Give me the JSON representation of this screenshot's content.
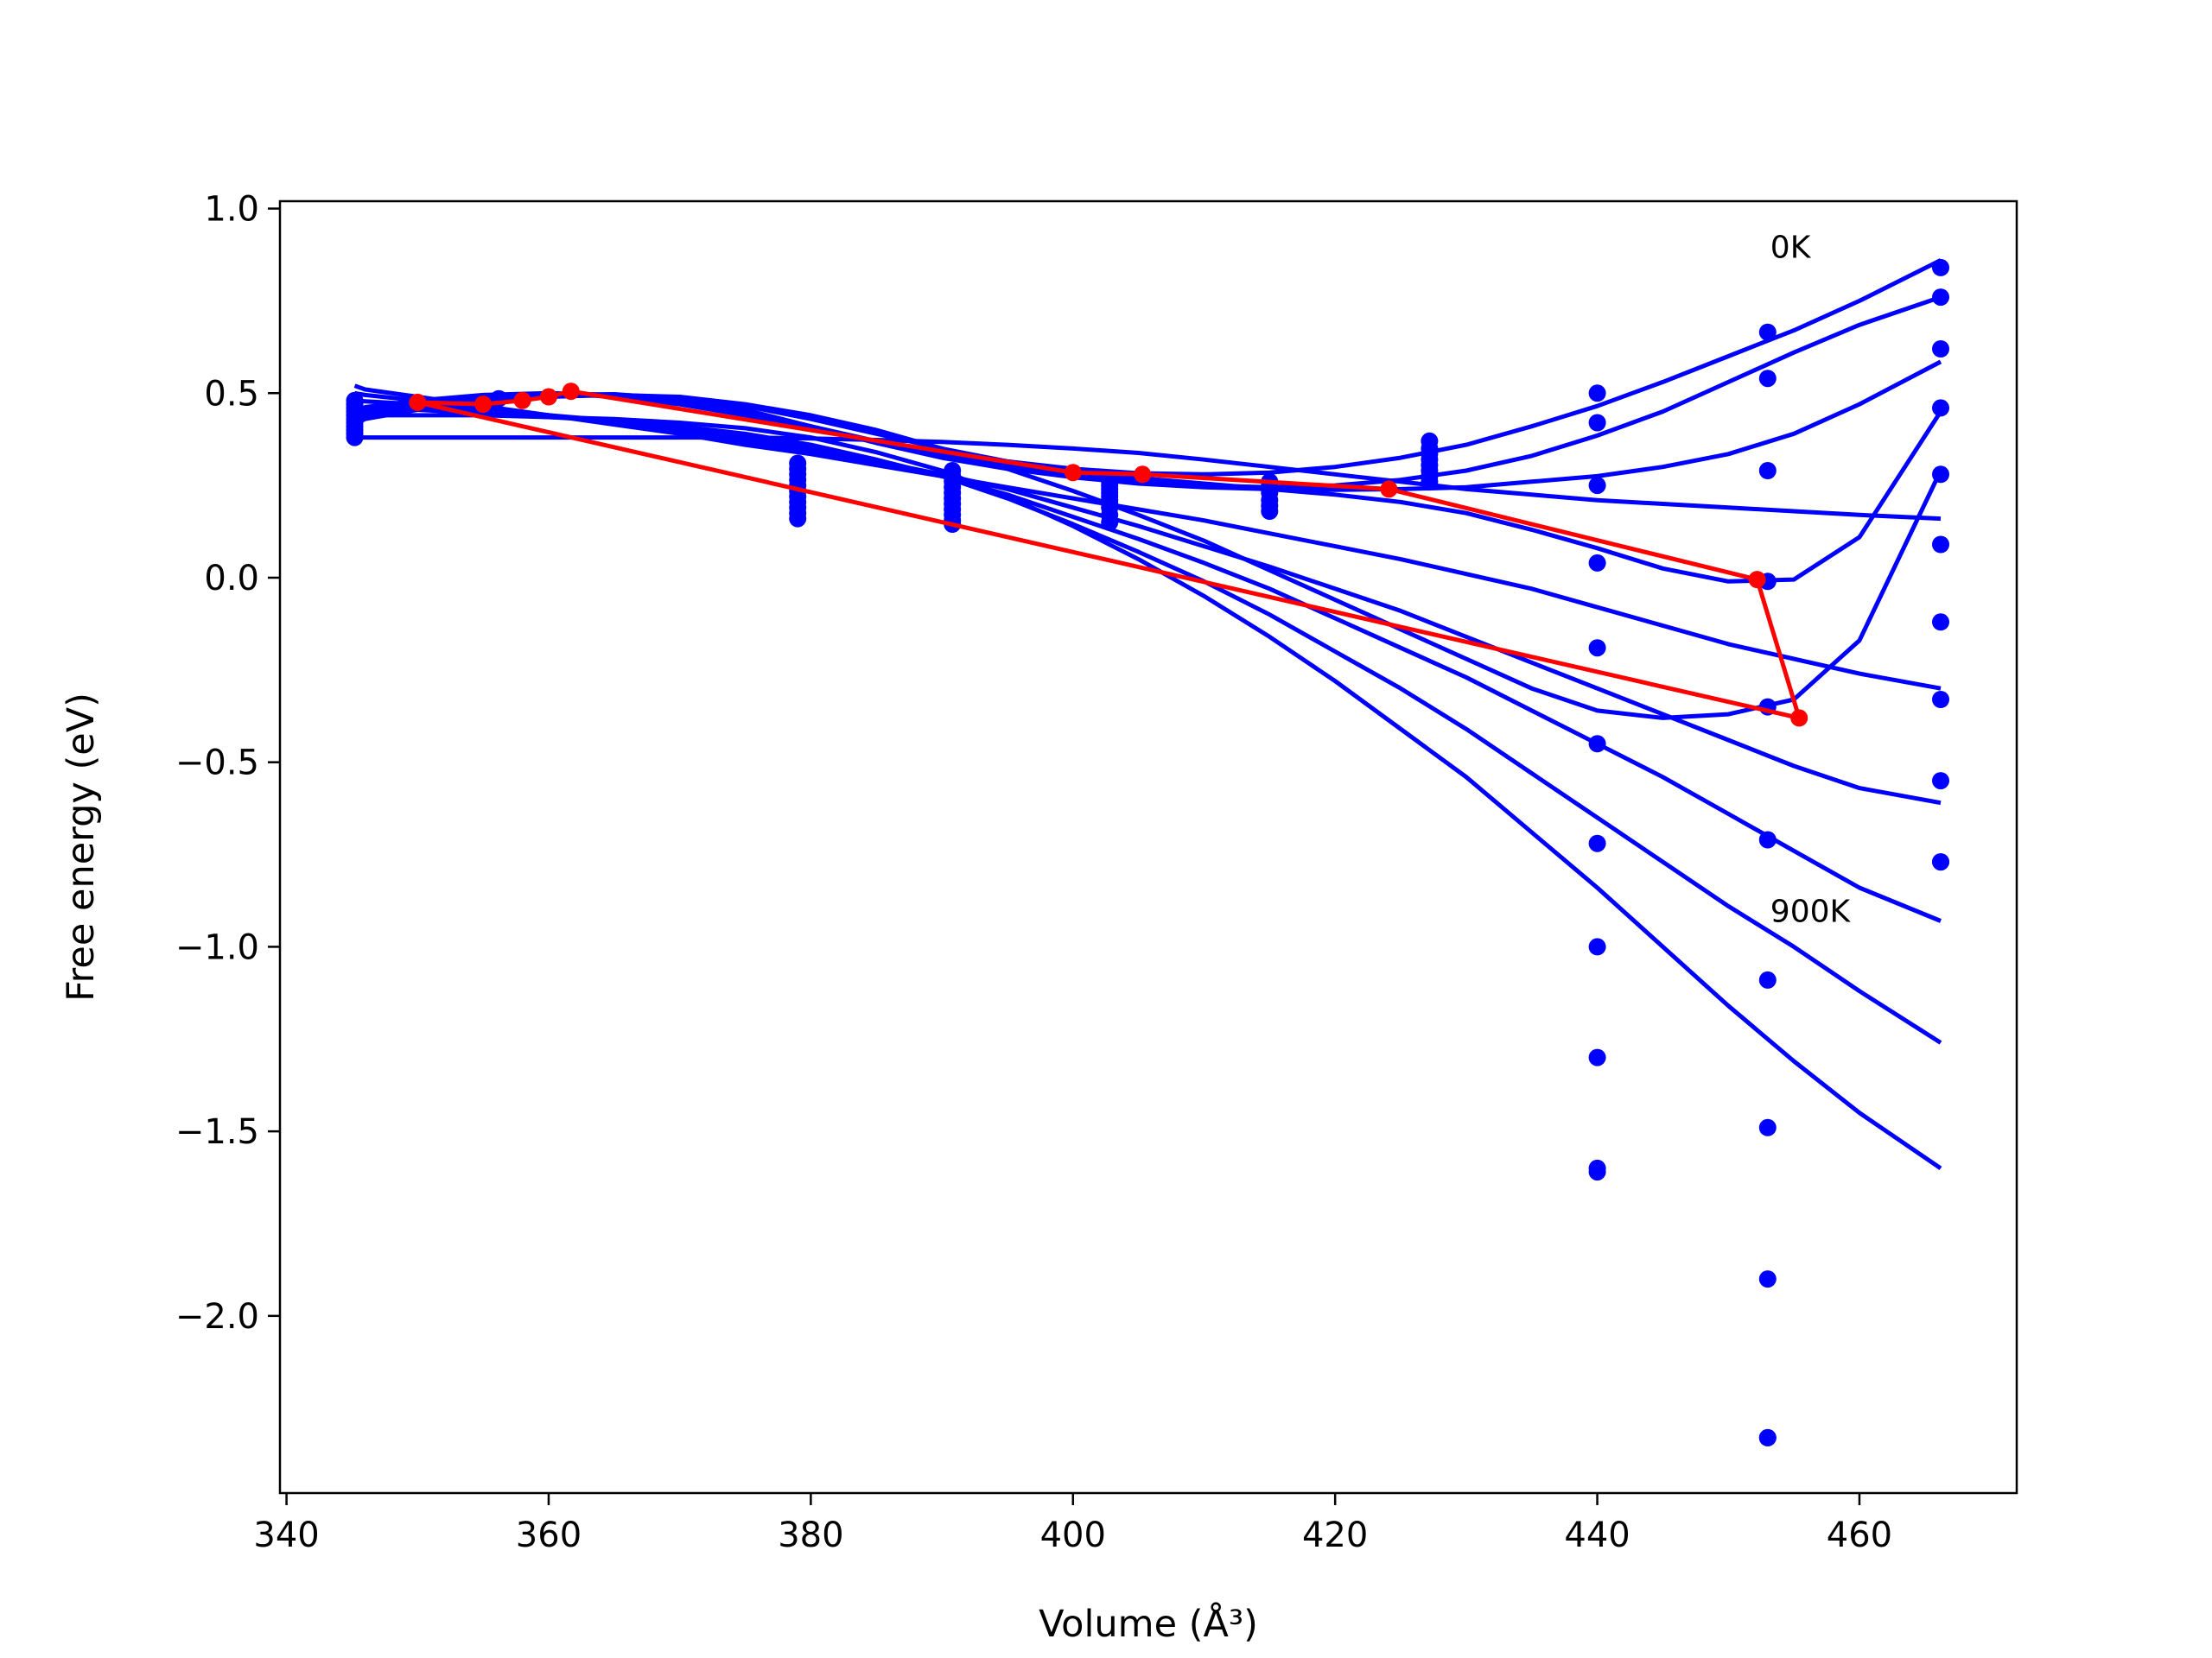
{
  "chart_data": {
    "type": "line",
    "title": "",
    "xlabel": "Volume (Å³)",
    "ylabel": "Free energy (eV)",
    "xlim": [
      339.5,
      472.0
    ],
    "ylim": [
      -2.48,
      1.02
    ],
    "xticks": [
      340,
      360,
      380,
      400,
      420,
      440,
      460
    ],
    "xtick_labels": [
      "340",
      "360",
      "380",
      "400",
      "420",
      "440",
      "460"
    ],
    "yticks": [
      1.0,
      0.5,
      0.0,
      -0.5,
      -1.0,
      -1.5,
      -2.0
    ],
    "ytick_labels": [
      "1.0",
      "0.5",
      "0.0",
      "−0.5",
      "−1.0",
      "−1.5",
      "−2.0"
    ],
    "grid": false,
    "annotations": [
      {
        "text": "0K",
        "x": 453.2,
        "y": 0.9
      },
      {
        "text": "900K",
        "x": 453.2,
        "y": -0.9
      }
    ],
    "colors": {
      "fit_curves": "#0000ff",
      "minima_path": "#ff0000",
      "data_points": "#0000ff"
    },
    "fit_volumes": [
      345.2,
      346,
      350,
      355,
      360,
      365,
      370,
      375,
      380,
      385,
      390,
      395,
      400,
      405,
      410,
      415,
      420,
      425,
      430,
      435,
      440,
      445,
      450,
      455,
      460,
      466.2
    ],
    "series": [
      {
        "values": [
          0.45,
          0.462,
          0.48,
          0.495,
          0.5,
          0.49,
          0.47,
          0.44,
          0.405,
          0.37,
          0.34,
          0.315,
          0.295,
          0.283,
          0.28,
          0.285,
          0.3,
          0.325,
          0.36,
          0.41,
          0.465,
          0.53,
          0.6,
          0.67,
          0.75,
          0.86
        ]
      },
      {
        "values": [
          0.44,
          0.452,
          0.47,
          0.49,
          0.5,
          0.495,
          0.478,
          0.45,
          0.41,
          0.37,
          0.335,
          0.305,
          0.28,
          0.262,
          0.25,
          0.245,
          0.25,
          0.265,
          0.29,
          0.33,
          0.385,
          0.45,
          0.53,
          0.61,
          0.685,
          0.76
        ]
      },
      {
        "values": [
          0.435,
          0.445,
          0.465,
          0.485,
          0.495,
          0.497,
          0.485,
          0.455,
          0.41,
          0.365,
          0.325,
          0.295,
          0.272,
          0.255,
          0.245,
          0.24,
          0.238,
          0.24,
          0.245,
          0.26,
          0.275,
          0.3,
          0.335,
          0.39,
          0.47,
          0.585
        ]
      },
      {
        "values": [
          0.425,
          0.44,
          0.46,
          0.48,
          0.492,
          0.495,
          0.488,
          0.465,
          0.43,
          0.39,
          0.35,
          0.315,
          0.29,
          0.27,
          0.255,
          0.24,
          0.225,
          0.205,
          0.175,
          0.13,
          0.08,
          0.025,
          -0.01,
          -0.005,
          0.11,
          0.45
        ]
      },
      {
        "values": [
          0.415,
          0.43,
          0.455,
          0.475,
          0.49,
          0.495,
          0.49,
          0.47,
          0.44,
          0.4,
          0.35,
          0.295,
          0.235,
          0.17,
          0.1,
          0.02,
          -0.06,
          -0.14,
          -0.22,
          -0.3,
          -0.36,
          -0.38,
          -0.37,
          -0.33,
          -0.17,
          0.29
        ]
      },
      {
        "values": [
          0.52,
          0.51,
          0.49,
          0.465,
          0.44,
          0.415,
          0.39,
          0.36,
          0.335,
          0.305,
          0.275,
          0.245,
          0.215,
          0.185,
          0.155,
          0.12,
          0.085,
          0.05,
          0.01,
          -0.03,
          -0.08,
          -0.13,
          -0.18,
          -0.22,
          -0.26,
          -0.3
        ]
      },
      {
        "values": [
          0.5,
          0.495,
          0.48,
          0.46,
          0.44,
          0.42,
          0.395,
          0.37,
          0.345,
          0.315,
          0.28,
          0.24,
          0.19,
          0.14,
          0.085,
          0.03,
          -0.03,
          -0.09,
          -0.16,
          -0.23,
          -0.3,
          -0.37,
          -0.44,
          -0.51,
          -0.57,
          -0.61
        ]
      },
      {
        "values": [
          0.48,
          0.478,
          0.47,
          0.455,
          0.44,
          0.425,
          0.405,
          0.38,
          0.35,
          0.315,
          0.275,
          0.225,
          0.165,
          0.105,
          0.04,
          -0.03,
          -0.11,
          -0.19,
          -0.27,
          -0.36,
          -0.45,
          -0.54,
          -0.64,
          -0.74,
          -0.84,
          -0.93
        ]
      },
      {
        "values": [
          0.46,
          0.458,
          0.455,
          0.445,
          0.435,
          0.425,
          0.41,
          0.39,
          0.36,
          0.32,
          0.275,
          0.215,
          0.145,
          0.07,
          -0.01,
          -0.1,
          -0.2,
          -0.3,
          -0.41,
          -0.53,
          -0.65,
          -0.77,
          -0.89,
          -1.0,
          -1.12,
          -1.26
        ]
      },
      {
        "values": [
          0.44,
          0.44,
          0.44,
          0.44,
          0.435,
          0.43,
          0.42,
          0.405,
          0.38,
          0.34,
          0.29,
          0.22,
          0.14,
          0.05,
          -0.05,
          -0.16,
          -0.28,
          -0.41,
          -0.54,
          -0.69,
          -0.84,
          -1.0,
          -1.16,
          -1.31,
          -1.45,
          -1.6
        ]
      },
      {
        "values": [
          0.38,
          0.38,
          0.38,
          0.38,
          0.38,
          0.38,
          0.38,
          0.38,
          0.377,
          0.373,
          0.368,
          0.36,
          0.35,
          0.338,
          0.32,
          0.3,
          0.28,
          0.26,
          0.24,
          0.225,
          0.21,
          0.2,
          0.19,
          0.18,
          0.17,
          0.16
        ]
      }
    ],
    "minima_path": {
      "x": [
        350,
        355,
        358,
        360,
        361.7,
        400,
        405.3,
        424.1,
        452.2,
        455.4,
        350
      ],
      "y": [
        0.475,
        0.47,
        0.48,
        0.49,
        0.505,
        0.285,
        0.28,
        0.24,
        -0.005,
        -0.38,
        0.475
      ]
    },
    "scatter_points": {
      "x": [
        345.2,
        345.2,
        345.2,
        345.2,
        345.2,
        345.2,
        345.2,
        345.2,
        345.2,
        345.2,
        345.2,
        356.2,
        379,
        379,
        379,
        379,
        379,
        379,
        379,
        379,
        379,
        379,
        379,
        390.8,
        390.8,
        390.8,
        390.8,
        390.8,
        390.8,
        390.8,
        390.8,
        390.8,
        390.8,
        390.8,
        402.8,
        402.8,
        402.8,
        402.8,
        402.8,
        402.8,
        402.8,
        402.8,
        402.8,
        402.8,
        402.8,
        415,
        415,
        415,
        415,
        415,
        415,
        415,
        427.2,
        427.2,
        427.2,
        427.2,
        427.2,
        427.2,
        427.2,
        427.2,
        440,
        440,
        440,
        440,
        440,
        440,
        440,
        440,
        440,
        440,
        440,
        453,
        453,
        453,
        453,
        453,
        453,
        453,
        453,
        453,
        453,
        453,
        466.2,
        466.2,
        466.2,
        466.2,
        466.2,
        466.2,
        466.2,
        466.2,
        466.2,
        466.2,
        466.2
      ],
      "y": [
        0.48,
        0.47,
        0.46,
        0.45,
        0.44,
        0.43,
        0.42,
        0.41,
        0.4,
        0.39,
        0.38,
        0.485,
        0.31,
        0.295,
        0.28,
        0.265,
        0.25,
        0.235,
        0.22,
        0.205,
        0.19,
        0.175,
        0.16,
        0.29,
        0.275,
        0.26,
        0.245,
        0.23,
        0.215,
        0.2,
        0.185,
        0.17,
        0.155,
        0.145,
        0.27,
        0.26,
        0.25,
        0.24,
        0.23,
        0.22,
        0.21,
        0.2,
        0.19,
        0.17,
        0.15,
        0.26,
        0.25,
        0.24,
        0.23,
        0.21,
        0.195,
        0.18,
        0.37,
        0.35,
        0.335,
        0.32,
        0.305,
        0.29,
        0.275,
        0.26,
        0.5,
        0.42,
        0.25,
        0.04,
        -0.19,
        -0.45,
        -0.72,
        -1.0,
        -1.3,
        -1.6,
        -1.61,
        0.665,
        0.54,
        0.29,
        -0.01,
        -0.35,
        -0.71,
        -1.09,
        -1.49,
        -1.9,
        -2.33,
        -2.33,
        0.84,
        0.76,
        0.62,
        0.46,
        0.28,
        0.09,
        -0.12,
        -0.33,
        -0.55,
        -0.77,
        -0.77
      ]
    }
  }
}
